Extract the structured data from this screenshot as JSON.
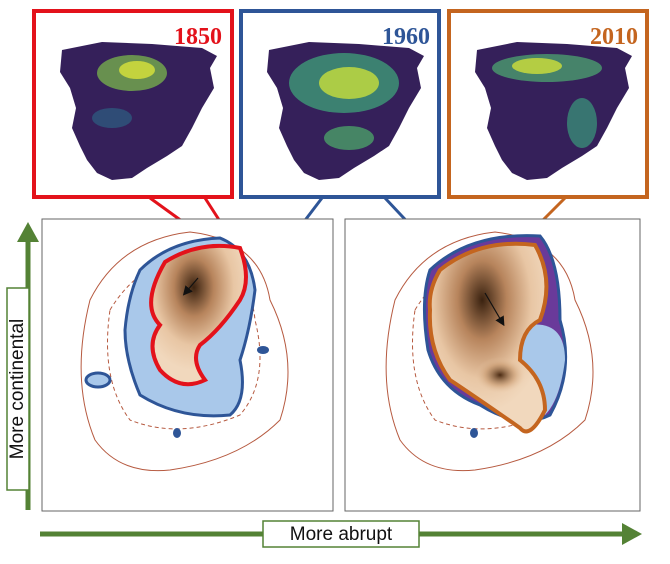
{
  "panels": [
    {
      "label": "1850"
    },
    {
      "label": "1960"
    },
    {
      "label": "2010"
    }
  ],
  "y_axis_label": "More continental",
  "x_axis_label": "More abrupt"
}
